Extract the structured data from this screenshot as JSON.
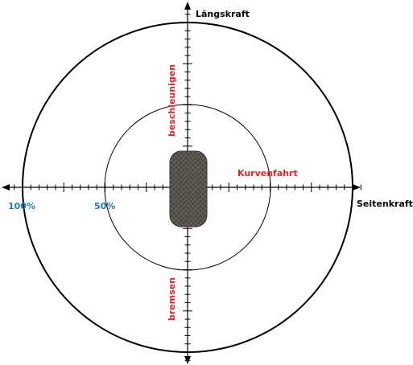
{
  "axes": {
    "vertical": "Längskraft",
    "horizontal": "Seitenkraft"
  },
  "regions": {
    "top": "beschleunigen",
    "bottom": "bremsen",
    "right": "Kurvenfahrt"
  },
  "scale": {
    "outer": "100%",
    "inner": "50%"
  }
}
